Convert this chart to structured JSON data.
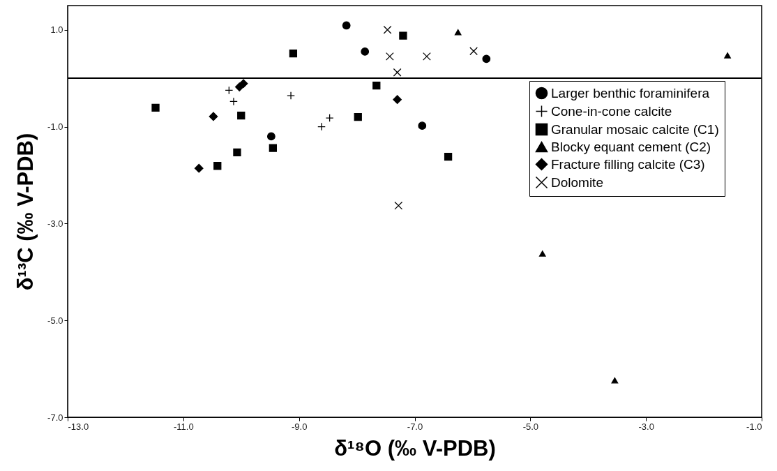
{
  "chart_data": {
    "type": "scatter",
    "xlabel": "δ¹⁸O (‰ V-PDB)",
    "ylabel": "δ¹³C (‰ V-PDB)",
    "xlim": [
      -13,
      -1
    ],
    "ylim": [
      -7,
      1.5
    ],
    "xticks": [
      {
        "value": -13,
        "label": "-13.0"
      },
      {
        "value": -11,
        "label": "-11.0"
      },
      {
        "value": -9,
        "label": "-9.0"
      },
      {
        "value": -7,
        "label": "-7.0"
      },
      {
        "value": -5,
        "label": "-5.0"
      },
      {
        "value": -3,
        "label": "-3.0"
      },
      {
        "value": -1,
        "label": "-1.0"
      }
    ],
    "yticks": [
      {
        "value": -7,
        "label": "-7.0"
      },
      {
        "value": -5,
        "label": "-5.0"
      },
      {
        "value": -3,
        "label": "-3.0"
      },
      {
        "value": -1,
        "label": "-1.0"
      },
      {
        "value": 1,
        "label": "1.0"
      }
    ],
    "grid": false,
    "legend": "top right",
    "ref_lines": [
      {
        "axis": "y",
        "value": 0,
        "color": "#000000"
      }
    ],
    "series": [
      {
        "name": "Larger benthic foraminifera",
        "color": "#000000",
        "marker": "circle",
        "x": [
          -8.18,
          -7.86,
          -9.48,
          -6.87,
          -5.76
        ],
        "values": [
          1.09,
          0.55,
          -1.2,
          -0.98,
          0.4
        ]
      },
      {
        "name": "Cone-in-cone calcite",
        "color": "#000000",
        "marker": "cross",
        "x": [
          -10.21,
          -10.13,
          -9.14,
          -8.47,
          -8.61
        ],
        "values": [
          -0.25,
          -0.48,
          -0.36,
          -0.82,
          -1.0
        ]
      },
      {
        "name": "Granular mosaic calcite (C1)",
        "color": "#000000",
        "marker": "square",
        "x": [
          -11.48,
          -10.0,
          -10.07,
          -10.41,
          -9.45,
          -9.1,
          -7.66,
          -7.98,
          -7.2,
          -6.42
        ],
        "values": [
          -0.61,
          -0.77,
          -1.53,
          -1.81,
          -1.44,
          0.51,
          -0.15,
          -0.8,
          0.88,
          -1.62
        ]
      },
      {
        "name": "Blocky equant cement (C2)",
        "color": "#000000",
        "marker": "triangle",
        "x": [
          -6.25,
          -1.59,
          -4.79,
          -3.54
        ],
        "values": [
          0.95,
          0.47,
          -3.62,
          -6.24
        ]
      },
      {
        "name": "Fracture filling calcite (C3)",
        "color": "#000000",
        "marker": "diamond",
        "x": [
          -10.73,
          -10.48,
          -10.03,
          -9.96,
          -7.3
        ],
        "values": [
          -1.86,
          -0.79,
          -0.18,
          -0.11,
          -0.44
        ]
      },
      {
        "name": "Dolomite",
        "color": "#000000",
        "marker": "x",
        "x": [
          -7.47,
          -7.43,
          -7.3,
          -7.28,
          -6.79,
          -5.98
        ],
        "values": [
          1.0,
          0.45,
          0.12,
          -2.63,
          0.45,
          0.56
        ]
      }
    ]
  }
}
